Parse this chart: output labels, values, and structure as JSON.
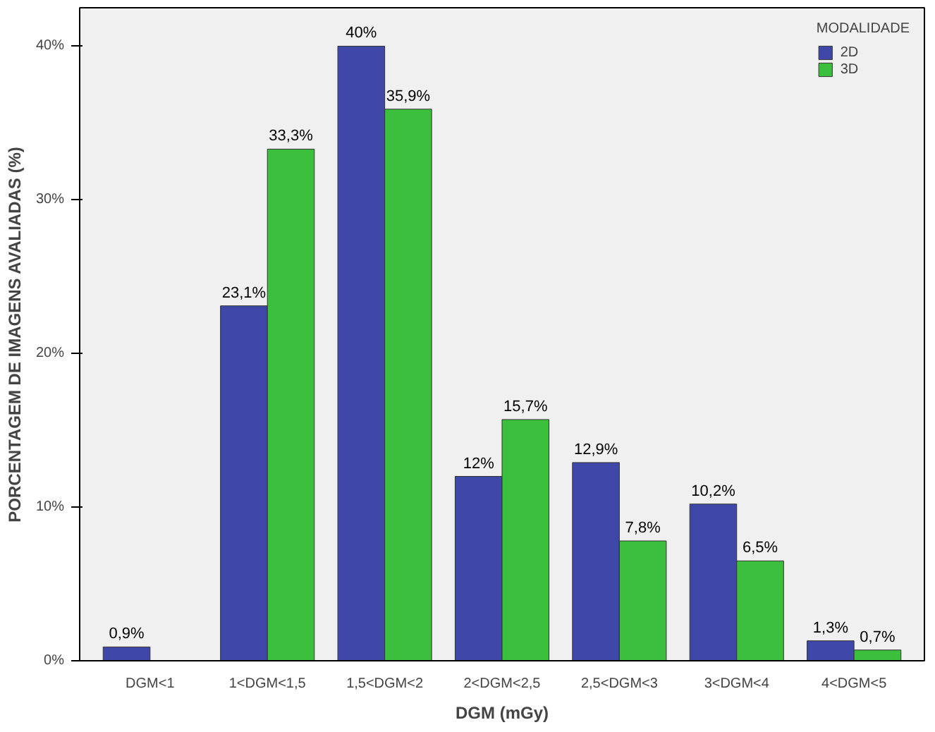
{
  "chart_data": {
    "type": "bar",
    "xlabel": "DGM (mGy)",
    "ylabel": "PORCENTAGEM DE IMAGENS AVALIADAS (%)",
    "legend_title": "MODALIDADE",
    "legend": "top right",
    "grid": false,
    "categories": [
      "DGM<1",
      "1<DGM<1,5",
      "1,5<DGM<2",
      "2<DGM<2,5",
      "2,5<DGM<3",
      "3<DGM<4",
      "4<DGM<5"
    ],
    "ylim": [
      0,
      42.5
    ],
    "yticks": [
      {
        "value": 0,
        "label": "0%"
      },
      {
        "value": 10,
        "label": "10%"
      },
      {
        "value": 20,
        "label": "20%"
      },
      {
        "value": 30,
        "label": "30%"
      },
      {
        "value": 40,
        "label": "40%"
      }
    ],
    "series": [
      {
        "name": "2D",
        "color": "#3f48a8",
        "values": [
          0.9,
          23.1,
          40,
          12,
          12.9,
          10.2,
          1.3
        ],
        "value_labels": [
          "0,9%",
          "23,1%",
          "40%",
          "12%",
          "12,9%",
          "10,2%",
          "1,3%"
        ]
      },
      {
        "name": "3D",
        "color": "#3cbf3c",
        "values": [
          null,
          33.3,
          35.9,
          15.7,
          7.8,
          6.5,
          0.7
        ],
        "value_labels": [
          null,
          "33,3%",
          "35,9%",
          "15,7%",
          "7,8%",
          "6,5%",
          "0,7%"
        ]
      }
    ]
  }
}
